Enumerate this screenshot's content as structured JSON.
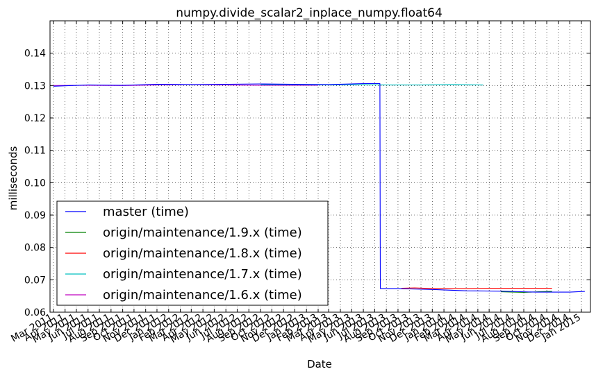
{
  "chart_data": {
    "type": "line",
    "title": "numpy.divide_scalar2_inplace_numpy.float64",
    "xlabel": "Date",
    "ylabel": "milliseconds",
    "xlim": [
      "2011-02-20",
      "2015-01-25"
    ],
    "ylim": [
      0.06,
      0.15
    ],
    "yticks": [
      0.06,
      0.07,
      0.08,
      0.09,
      0.1,
      0.11,
      0.12,
      0.13,
      0.14
    ],
    "ytick_labels": [
      "0.06",
      "0.07",
      "0.08",
      "0.09",
      "0.10",
      "0.11",
      "0.12",
      "0.13",
      "0.14"
    ],
    "xticks": [
      "2011-03-01",
      "2011-04-01",
      "2011-05-01",
      "2011-06-01",
      "2011-07-01",
      "2011-08-01",
      "2011-09-01",
      "2011-10-01",
      "2011-11-01",
      "2011-12-01",
      "2012-01-01",
      "2012-02-01",
      "2012-03-01",
      "2012-04-01",
      "2012-05-01",
      "2012-06-01",
      "2012-07-01",
      "2012-08-01",
      "2012-09-01",
      "2012-10-01",
      "2012-11-01",
      "2012-12-01",
      "2013-01-01",
      "2013-02-01",
      "2013-03-01",
      "2013-04-01",
      "2013-05-01",
      "2013-06-01",
      "2013-07-01",
      "2013-08-01",
      "2013-09-01",
      "2013-10-01",
      "2013-11-01",
      "2013-12-01",
      "2014-01-01",
      "2014-02-01",
      "2014-03-01",
      "2014-04-01",
      "2014-05-01",
      "2014-06-01",
      "2014-07-01",
      "2014-08-01",
      "2014-09-01",
      "2014-10-01",
      "2014-11-01",
      "2014-12-01",
      "2015-01-01"
    ],
    "xtick_labels": [
      "Mar 2011",
      "Apr 2011",
      "May 2011",
      "Jun 2011",
      "Jul 2011",
      "Aug 2011",
      "Sep 2011",
      "Oct 2011",
      "Nov 2011",
      "Dec 2011",
      "Jan 2012",
      "Feb 2012",
      "Mar 2012",
      "Apr 2012",
      "May 2012",
      "Jun 2012",
      "Jul 2012",
      "Aug 2012",
      "Sep 2012",
      "Oct 2012",
      "Nov 2012",
      "Dec 2012",
      "Jan 2013",
      "Feb 2013",
      "Mar 2013",
      "Apr 2013",
      "May 2013",
      "Jun 2013",
      "Jul 2013",
      "Aug 2013",
      "Sep 2013",
      "Oct 2013",
      "Nov 2013",
      "Dec 2013",
      "Jan 2014",
      "Feb 2014",
      "Mar 2014",
      "Apr 2014",
      "May 2014",
      "Jun 2014",
      "Jul 2014",
      "Aug 2014",
      "Sep 2014",
      "Oct 2014",
      "Nov 2014",
      "Dec 2014",
      "Jan 2015"
    ],
    "grid": true,
    "legend_position": "lower-left",
    "series": [
      {
        "name": "master (time)",
        "color": "#0000ff",
        "x": [
          "2011-03-01",
          "2011-06-01",
          "2011-09-01",
          "2011-12-01",
          "2012-03-01",
          "2012-06-01",
          "2012-09-01",
          "2012-12-01",
          "2013-03-01",
          "2013-06-01",
          "2013-07-15",
          "2013-07-16",
          "2013-09-01",
          "2013-12-01",
          "2014-03-01",
          "2014-06-01",
          "2014-09-01",
          "2014-12-01",
          "2015-01-10"
        ],
        "y": [
          0.1298,
          0.1302,
          0.1301,
          0.1304,
          0.1303,
          0.1304,
          0.1305,
          0.1304,
          0.1303,
          0.1306,
          0.1306,
          0.0673,
          0.0673,
          0.067,
          0.0666,
          0.0665,
          0.0662,
          0.0662,
          0.0664
        ]
      },
      {
        "name": "origin/maintenance/1.9.x (time)",
        "color": "#008000",
        "x": [
          "2014-06-01",
          "2014-08-01",
          "2014-09-10",
          "2014-10-15"
        ],
        "y": [
          0.0663,
          0.0661,
          0.0663,
          0.0664
        ]
      },
      {
        "name": "origin/maintenance/1.8.x (time)",
        "color": "#ff0000",
        "x": [
          "2013-09-10",
          "2013-10-15",
          "2013-12-01",
          "2014-03-01",
          "2014-05-01",
          "2014-07-01",
          "2014-10-15"
        ],
        "y": [
          0.0674,
          0.0675,
          0.0673,
          0.0673,
          0.0674,
          0.0674,
          0.0674
        ]
      },
      {
        "name": "origin/maintenance/1.7.x (time)",
        "color": "#00bfbf",
        "x": [
          "2012-09-01",
          "2012-12-01",
          "2013-03-01",
          "2013-06-01",
          "2013-08-01",
          "2013-11-01",
          "2014-02-01",
          "2014-04-15"
        ],
        "y": [
          0.1303,
          0.1303,
          0.1302,
          0.1303,
          0.1302,
          0.1302,
          0.1303,
          0.1302
        ]
      },
      {
        "name": "origin/maintenance/1.6.x (time)",
        "color": "#bf00bf",
        "x": [
          "2011-03-01",
          "2011-06-01",
          "2011-09-01",
          "2011-12-01",
          "2012-03-01",
          "2012-06-01",
          "2012-09-01",
          "2012-12-01",
          "2013-02-01"
        ],
        "y": [
          0.13,
          0.1301,
          0.13,
          0.1302,
          0.1303,
          0.1302,
          0.1301,
          0.1301,
          0.1301
        ]
      }
    ]
  }
}
